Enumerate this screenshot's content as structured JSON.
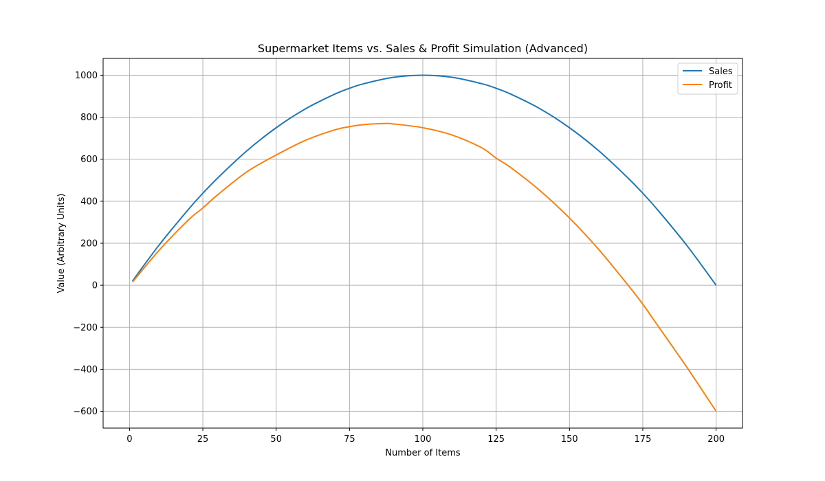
{
  "chart_data": {
    "type": "line",
    "title": "Supermarket Items vs. Sales & Profit Simulation (Advanced)",
    "xlabel": "Number of Items",
    "ylabel": "Value (Arbitrary Units)",
    "xlim": [
      -9,
      209
    ],
    "ylim": [
      -680,
      1080
    ],
    "xticks": [
      0,
      25,
      50,
      75,
      100,
      125,
      150,
      175,
      200
    ],
    "yticks": [
      -600,
      -400,
      -200,
      0,
      200,
      400,
      600,
      800,
      1000
    ],
    "x_tick_labels": [
      "0",
      "25",
      "50",
      "75",
      "100",
      "125",
      "150",
      "175",
      "200"
    ],
    "y_tick_labels": [
      "−600",
      "−400",
      "−200",
      "0",
      "200",
      "400",
      "600",
      "800",
      "1000"
    ],
    "grid": true,
    "legend_position": "top-right",
    "series": [
      {
        "name": "Sales",
        "color": "#1f77b4",
        "x": [
          1,
          10,
          20,
          25,
          30,
          40,
          50,
          60,
          70,
          75,
          80,
          90,
          100,
          110,
          120,
          125,
          130,
          140,
          150,
          160,
          170,
          175,
          180,
          190,
          200
        ],
        "values": [
          20,
          190,
          360,
          438,
          510,
          640,
          750,
          840,
          910,
          938,
          960,
          990,
          1000,
          990,
          960,
          938,
          910,
          840,
          750,
          640,
          510,
          438,
          360,
          190,
          0
        ]
      },
      {
        "name": "Profit",
        "color": "#ff7f0e",
        "x": [
          1,
          10,
          20,
          25,
          30,
          40,
          50,
          60,
          70,
          75,
          80,
          87,
          90,
          100,
          110,
          120,
          125,
          130,
          140,
          150,
          160,
          170,
          175,
          180,
          190,
          200
        ],
        "values": [
          15,
          165,
          310,
          368,
          430,
          540,
          620,
          690,
          740,
          755,
          765,
          770,
          768,
          750,
          715,
          655,
          605,
          560,
          450,
          320,
          170,
          0,
          -90,
          -190,
          -390,
          -600
        ]
      }
    ]
  }
}
